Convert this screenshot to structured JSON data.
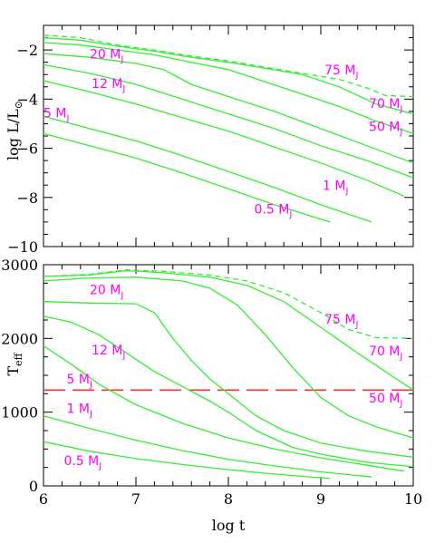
{
  "chart_data": [
    {
      "type": "line",
      "panel": "top",
      "xlabel": "",
      "ylabel": "log L/L⊙",
      "ylabel_main": "log L/L",
      "ylabel_sun": "⊙",
      "xlim": [
        6,
        10
      ],
      "ylim": [
        -10,
        -1
      ],
      "y_ticks": [
        -10,
        -8,
        -6,
        -4,
        -2
      ],
      "y_tick_labels": [
        "−10",
        "−8",
        "−6",
        "−4",
        "−2"
      ],
      "grid": false,
      "series": [
        {
          "name": "75 MJ",
          "mass": "75",
          "style": "dashed",
          "x": [
            6.0,
            6.4,
            6.8,
            7.2,
            7.6,
            8.0,
            8.4,
            8.8,
            9.2,
            9.5,
            9.7,
            10.0
          ],
          "y": [
            -1.4,
            -1.5,
            -1.8,
            -2.0,
            -2.25,
            -2.45,
            -2.7,
            -2.95,
            -3.2,
            -3.55,
            -3.85,
            -3.9
          ]
        },
        {
          "name": "70 MJ",
          "mass": "70",
          "style": "solid",
          "x": [
            6.0,
            6.4,
            6.8,
            7.2,
            7.6,
            8.0,
            8.4,
            8.8,
            9.2,
            9.6,
            10.0
          ],
          "y": [
            -1.5,
            -1.6,
            -1.85,
            -2.05,
            -2.3,
            -2.5,
            -2.75,
            -3.0,
            -3.5,
            -4.2,
            -4.6
          ]
        },
        {
          "name": "50 MJ",
          "mass": "50",
          "style": "solid",
          "x": [
            6.0,
            6.4,
            6.8,
            7.2,
            7.6,
            8.0,
            8.4,
            8.8,
            9.2,
            9.6,
            10.0
          ],
          "y": [
            -1.7,
            -1.8,
            -2.0,
            -2.2,
            -2.5,
            -2.8,
            -3.3,
            -3.8,
            -4.3,
            -4.9,
            -5.4
          ]
        },
        {
          "name": "20 MJ",
          "mass": "20",
          "style": "solid",
          "x": [
            6.0,
            6.5,
            7.0,
            7.3,
            7.6,
            8.0,
            8.5,
            9.0,
            9.5,
            10.0
          ],
          "y": [
            -2.15,
            -2.3,
            -2.55,
            -2.8,
            -3.4,
            -3.9,
            -4.5,
            -5.2,
            -5.9,
            -6.6
          ]
        },
        {
          "name": "12 MJ",
          "mass": "12",
          "style": "solid",
          "x": [
            6.0,
            6.5,
            7.0,
            7.5,
            8.0,
            8.5,
            9.0,
            9.5,
            10.0
          ],
          "y": [
            -2.6,
            -2.95,
            -3.4,
            -4.0,
            -4.6,
            -5.2,
            -5.9,
            -6.5,
            -7.2
          ]
        },
        {
          "name": "5 MJ",
          "mass": "5",
          "style": "solid",
          "x": [
            6.0,
            6.5,
            7.0,
            7.5,
            8.0,
            8.5,
            9.0,
            9.5,
            9.9
          ],
          "y": [
            -3.25,
            -3.7,
            -4.2,
            -4.75,
            -5.3,
            -5.95,
            -6.6,
            -7.3,
            -7.95
          ]
        },
        {
          "name": "1 MJ",
          "mass": "1",
          "style": "solid",
          "x": [
            6.0,
            6.5,
            7.0,
            7.5,
            8.0,
            8.5,
            9.0,
            9.55
          ],
          "y": [
            -4.7,
            -5.2,
            -5.7,
            -6.3,
            -6.95,
            -7.6,
            -8.3,
            -9.0
          ]
        },
        {
          "name": "0.5 MJ",
          "mass": "0.5",
          "style": "solid",
          "x": [
            6.0,
            6.5,
            7.0,
            7.5,
            8.0,
            8.5,
            9.1
          ],
          "y": [
            -5.4,
            -5.9,
            -6.4,
            -7.0,
            -7.65,
            -8.3,
            -9.0
          ]
        }
      ],
      "annotations": [
        {
          "mass": "20",
          "x": 6.5,
          "y": -2.35
        },
        {
          "mass": "12",
          "x": 6.52,
          "y": -3.55
        },
        {
          "mass": "5",
          "x": 6.0,
          "y": -4.75
        },
        {
          "mass": "75",
          "x": 9.04,
          "y": -3.0
        },
        {
          "mass": "70",
          "x": 9.52,
          "y": -4.35
        },
        {
          "mass": "50",
          "x": 9.52,
          "y": -5.3
        },
        {
          "mass": "1",
          "x": 9.02,
          "y": -7.7
        },
        {
          "mass": "0.5",
          "x": 8.28,
          "y": -8.65
        }
      ]
    },
    {
      "type": "line",
      "panel": "bottom",
      "xlabel": "log t",
      "ylabel": "Teff",
      "ylabel_main": "T",
      "ylabel_sub": "eff",
      "xlim": [
        6,
        10
      ],
      "ylim": [
        0,
        3000
      ],
      "x_ticks": [
        6,
        7,
        8,
        9,
        10
      ],
      "x_tick_labels": [
        "6",
        "7",
        "8",
        "9",
        "10"
      ],
      "y_ticks": [
        0,
        1000,
        2000,
        3000
      ],
      "y_tick_labels": [
        "0",
        "1000",
        "2000",
        "3000"
      ],
      "grid": false,
      "reference_line": {
        "y": 1300,
        "color": "#ff3333",
        "style": "long-dashed"
      },
      "series": [
        {
          "name": "75 MJ",
          "mass": "75",
          "style": "dashed",
          "x": [
            6.0,
            6.5,
            6.9,
            7.3,
            7.8,
            8.2,
            8.6,
            9.0,
            9.3,
            9.6,
            10.0
          ],
          "y": [
            2840,
            2870,
            2930,
            2910,
            2860,
            2780,
            2620,
            2350,
            2120,
            2010,
            2000
          ]
        },
        {
          "name": "70 MJ",
          "mass": "70",
          "style": "solid",
          "x": [
            6.0,
            6.5,
            6.9,
            7.3,
            7.8,
            8.2,
            8.6,
            9.0,
            9.4,
            9.7,
            10.0
          ],
          "y": [
            2840,
            2860,
            2920,
            2890,
            2830,
            2720,
            2500,
            2150,
            1800,
            1550,
            1300
          ]
        },
        {
          "name": "50 MJ",
          "mass": "50",
          "style": "solid",
          "x": [
            6.0,
            6.5,
            7.0,
            7.5,
            7.8,
            8.1,
            8.4,
            8.7,
            9.0,
            9.3,
            9.6,
            10.0
          ],
          "y": [
            2780,
            2820,
            2830,
            2780,
            2680,
            2450,
            2050,
            1600,
            1200,
            950,
            800,
            650
          ]
        },
        {
          "name": "20 MJ",
          "mass": "20",
          "style": "solid",
          "x": [
            6.0,
            6.5,
            7.0,
            7.2,
            7.4,
            7.6,
            7.8,
            8.0,
            8.3,
            8.6,
            9.0,
            9.5,
            10.0
          ],
          "y": [
            2500,
            2480,
            2470,
            2350,
            2000,
            1700,
            1450,
            1250,
            950,
            750,
            580,
            470,
            390
          ]
        },
        {
          "name": "12 MJ",
          "mass": "12",
          "style": "solid",
          "x": [
            6.0,
            6.3,
            6.6,
            6.9,
            7.2,
            7.5,
            7.8,
            8.0,
            8.3,
            8.7,
            9.0,
            9.5,
            10.0
          ],
          "y": [
            2300,
            2220,
            2050,
            1800,
            1550,
            1350,
            1150,
            1000,
            750,
            520,
            430,
            320,
            260
          ]
        },
        {
          "name": "5 MJ",
          "mass": "5",
          "style": "solid",
          "x": [
            6.0,
            6.3,
            6.6,
            7.0,
            7.5,
            8.0,
            8.5,
            9.0,
            9.5,
            9.9
          ],
          "y": [
            1900,
            1650,
            1380,
            1100,
            850,
            650,
            500,
            380,
            280,
            200
          ]
        },
        {
          "name": "1 MJ",
          "mass": "1",
          "style": "solid",
          "x": [
            6.0,
            6.5,
            7.0,
            7.5,
            8.0,
            8.5,
            9.0,
            9.55
          ],
          "y": [
            950,
            780,
            620,
            480,
            360,
            270,
            190,
            120
          ]
        },
        {
          "name": "0.5 MJ",
          "mass": "0.5",
          "style": "solid",
          "x": [
            6.0,
            6.5,
            7.0,
            7.5,
            8.0,
            8.5,
            9.1
          ],
          "y": [
            600,
            470,
            370,
            290,
            220,
            160,
            100
          ]
        }
      ],
      "annotations": [
        {
          "mass": "20",
          "x": 6.5,
          "y": 2600
        },
        {
          "mass": "12",
          "x": 6.52,
          "y": 1780
        },
        {
          "mass": "5",
          "x": 6.25,
          "y": 1390
        },
        {
          "mass": "1",
          "x": 6.25,
          "y": 990
        },
        {
          "mass": "0.5",
          "x": 6.22,
          "y": 280
        },
        {
          "mass": "75",
          "x": 9.04,
          "y": 2200
        },
        {
          "mass": "70",
          "x": 9.52,
          "y": 1770
        },
        {
          "mass": "50",
          "x": 9.52,
          "y": 1130
        }
      ]
    }
  ],
  "mass_unit": {
    "main": "M",
    "sub": "J"
  },
  "colors": {
    "series": "#33ee33",
    "labels": "#ff00ff",
    "reference": "#ff3333",
    "axes": "#000000"
  }
}
